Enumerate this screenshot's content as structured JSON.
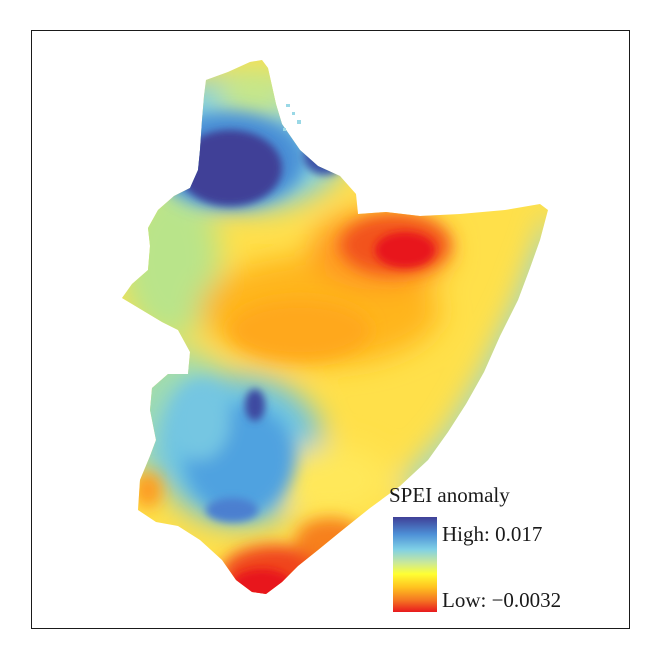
{
  "legend": {
    "title": "SPEI anomaly",
    "high_label": "High: 0.017",
    "low_label": "Low: −0.0032",
    "high_value": 0.017,
    "low_value": -0.0032,
    "colors": [
      "#3f3f97",
      "#4d8fd6",
      "#7fd0e6",
      "#c9e89a",
      "#ffff33",
      "#ffc21f",
      "#f57a22",
      "#e8191e"
    ]
  },
  "colors": {
    "base": "#ffe04a",
    "high": "#3f3f97",
    "low": "#e8191e",
    "frame": "#1a1a1a"
  }
}
